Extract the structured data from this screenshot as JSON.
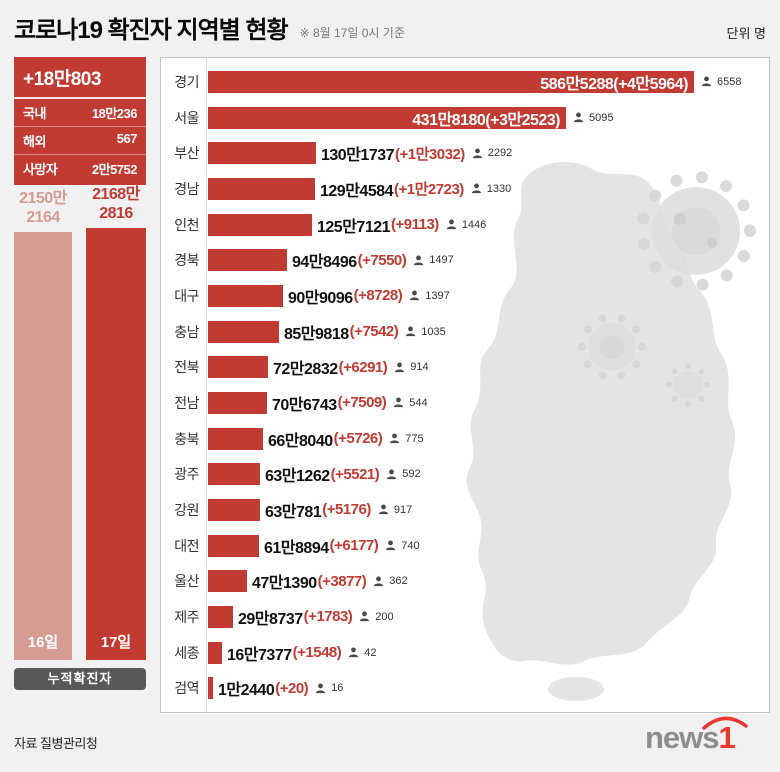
{
  "header": {
    "title": "코로나19 확진자 지역별 현황",
    "date_note": "※ 8월 17일 0시 기준",
    "unit_label": "단위 명"
  },
  "summary": {
    "new_total": "+18만803",
    "rows": [
      {
        "label": "국내",
        "value": "18만236"
      },
      {
        "label": "해외",
        "value": "567"
      },
      {
        "label": "사망자",
        "value": "2만5752"
      }
    ]
  },
  "cumulative": {
    "caption": "누적확진자",
    "bars": [
      {
        "day": "16일",
        "value_line1": "2150만",
        "value_line2": "2164",
        "value": 21502164
      },
      {
        "day": "17일",
        "value_line1": "2168만",
        "value_line2": "2816",
        "value": 21682816
      }
    ]
  },
  "chart_data": {
    "type": "bar",
    "orientation": "horizontal",
    "title": "코로나19 확진자 지역별 현황",
    "as_of": "8월 17일 0시 기준",
    "unit": "명",
    "max_value": 5865288,
    "regions": [
      {
        "name": "경기",
        "value": 5865288,
        "new_value": 45964,
        "total_text": "586만5288",
        "change_text": "(+4만5964)",
        "icon_count": "6558",
        "label_inside": true
      },
      {
        "name": "서울",
        "value": 4318180,
        "new_value": 32523,
        "total_text": "431만8180",
        "change_text": "(+3만2523)",
        "icon_count": "5095",
        "label_inside": true
      },
      {
        "name": "부산",
        "value": 1301737,
        "new_value": 13032,
        "total_text": "130만1737",
        "change_text": "(+1만3032)",
        "icon_count": "2292",
        "label_inside": false
      },
      {
        "name": "경남",
        "value": 1294584,
        "new_value": 12723,
        "total_text": "129만4584",
        "change_text": "(+1만2723)",
        "icon_count": "1330",
        "label_inside": false
      },
      {
        "name": "인천",
        "value": 1257121,
        "new_value": 9113,
        "total_text": "125만7121",
        "change_text": "(+9113)",
        "icon_count": "1446",
        "label_inside": false
      },
      {
        "name": "경북",
        "value": 948496,
        "new_value": 7550,
        "total_text": "94만8496",
        "change_text": "(+7550)",
        "icon_count": "1497",
        "label_inside": false
      },
      {
        "name": "대구",
        "value": 909096,
        "new_value": 8728,
        "total_text": "90만9096",
        "change_text": "(+8728)",
        "icon_count": "1397",
        "label_inside": false
      },
      {
        "name": "충남",
        "value": 859818,
        "new_value": 7542,
        "total_text": "85만9818",
        "change_text": "(+7542)",
        "icon_count": "1035",
        "label_inside": false
      },
      {
        "name": "전북",
        "value": 722832,
        "new_value": 6291,
        "total_text": "72만2832",
        "change_text": "(+6291)",
        "icon_count": "914",
        "label_inside": false
      },
      {
        "name": "전남",
        "value": 706743,
        "new_value": 7509,
        "total_text": "70만6743",
        "change_text": "(+7509)",
        "icon_count": "544",
        "label_inside": false
      },
      {
        "name": "충북",
        "value": 668040,
        "new_value": 5726,
        "total_text": "66만8040",
        "change_text": "(+5726)",
        "icon_count": "775",
        "label_inside": false
      },
      {
        "name": "광주",
        "value": 631262,
        "new_value": 5521,
        "total_text": "63만1262",
        "change_text": "(+5521)",
        "icon_count": "592",
        "label_inside": false
      },
      {
        "name": "강원",
        "value": 630781,
        "new_value": 5176,
        "total_text": "63만781",
        "change_text": "(+5176)",
        "icon_count": "917",
        "label_inside": false
      },
      {
        "name": "대전",
        "value": 618894,
        "new_value": 6177,
        "total_text": "61만8894",
        "change_text": "(+6177)",
        "icon_count": "740",
        "label_inside": false
      },
      {
        "name": "울산",
        "value": 471390,
        "new_value": 3877,
        "total_text": "47만1390",
        "change_text": "(+3877)",
        "icon_count": "362",
        "label_inside": false
      },
      {
        "name": "제주",
        "value": 298737,
        "new_value": 1783,
        "total_text": "29만8737",
        "change_text": "(+1783)",
        "icon_count": "200",
        "label_inside": false
      },
      {
        "name": "세종",
        "value": 167377,
        "new_value": 1548,
        "total_text": "16만7377",
        "change_text": "(+1548)",
        "icon_count": "42",
        "label_inside": false
      },
      {
        "name": "검역",
        "value": 12440,
        "new_value": 20,
        "total_text": "1만2440",
        "change_text": "(+20)",
        "icon_count": "16",
        "label_inside": false
      }
    ]
  },
  "footer": {
    "source": "자료 질병관리청",
    "logo": {
      "text": "news",
      "accent": "1"
    }
  },
  "colors": {
    "primary_red": "#c13b33",
    "light_pink": "#d69b93",
    "label_box_bg": "#595959",
    "logo_red": "#e8382f",
    "map_gray": "#e4e4e4"
  }
}
